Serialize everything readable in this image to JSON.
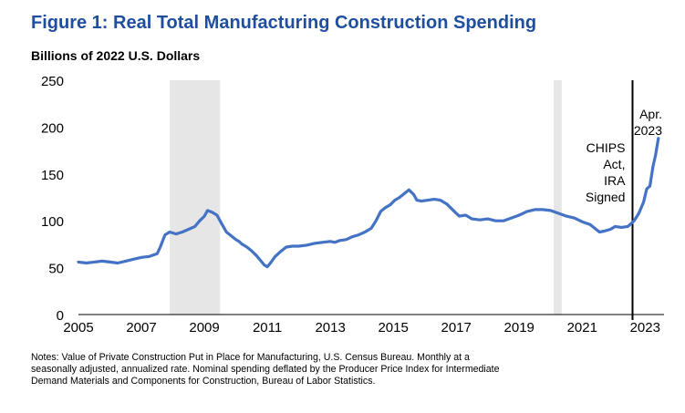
{
  "chart_data": {
    "type": "line",
    "title": "Figure 1: Real Total Manufacturing Construction Spending",
    "ylabel": "Billions of 2022 U.S. Dollars",
    "xlabel": "",
    "ylim": [
      0,
      250
    ],
    "xlim": [
      2005,
      2023.6
    ],
    "yticks": [
      "0",
      "50",
      "100",
      "150",
      "200",
      "250"
    ],
    "xticks": [
      "2005",
      "2007",
      "2009",
      "2011",
      "2013",
      "2015",
      "2017",
      "2019",
      "2021",
      "2023"
    ],
    "grid": false,
    "recessions": [
      [
        2007.9,
        2009.5
      ],
      [
        2020.1,
        2020.35
      ]
    ],
    "annotations": [
      {
        "text": [
          "CHIPS",
          "Act,",
          "IRA",
          "Signed"
        ],
        "x": 2022.6
      },
      {
        "text": [
          "Apr.",
          "2023"
        ],
        "x": 2023.3
      }
    ],
    "series": [
      {
        "name": "Real Total Manufacturing Construction Spending",
        "color": "#4472c4",
        "points": [
          [
            2005.0,
            56
          ],
          [
            2005.25,
            55
          ],
          [
            2005.5,
            56
          ],
          [
            2005.75,
            57
          ],
          [
            2006.0,
            56
          ],
          [
            2006.25,
            55
          ],
          [
            2006.5,
            57
          ],
          [
            2006.75,
            59
          ],
          [
            2007.0,
            61
          ],
          [
            2007.25,
            62
          ],
          [
            2007.5,
            65
          ],
          [
            2007.6,
            72
          ],
          [
            2007.75,
            85
          ],
          [
            2007.9,
            88
          ],
          [
            2008.1,
            86
          ],
          [
            2008.3,
            88
          ],
          [
            2008.5,
            91
          ],
          [
            2008.7,
            94
          ],
          [
            2008.85,
            100
          ],
          [
            2009.0,
            105
          ],
          [
            2009.1,
            111
          ],
          [
            2009.25,
            109
          ],
          [
            2009.4,
            106
          ],
          [
            2009.55,
            97
          ],
          [
            2009.7,
            88
          ],
          [
            2009.85,
            84
          ],
          [
            2010.0,
            80
          ],
          [
            2010.1,
            78
          ],
          [
            2010.2,
            75
          ],
          [
            2010.35,
            72
          ],
          [
            2010.5,
            68
          ],
          [
            2010.65,
            63
          ],
          [
            2010.8,
            57
          ],
          [
            2010.9,
            53
          ],
          [
            2011.0,
            51
          ],
          [
            2011.1,
            55
          ],
          [
            2011.25,
            62
          ],
          [
            2011.45,
            68
          ],
          [
            2011.6,
            72
          ],
          [
            2011.8,
            73
          ],
          [
            2012.0,
            73
          ],
          [
            2012.25,
            74
          ],
          [
            2012.5,
            76
          ],
          [
            2012.75,
            77
          ],
          [
            2013.0,
            78
          ],
          [
            2013.15,
            77
          ],
          [
            2013.3,
            79
          ],
          [
            2013.5,
            80
          ],
          [
            2013.7,
            83
          ],
          [
            2013.9,
            85
          ],
          [
            2014.1,
            88
          ],
          [
            2014.3,
            92
          ],
          [
            2014.45,
            100
          ],
          [
            2014.6,
            110
          ],
          [
            2014.75,
            114
          ],
          [
            2014.9,
            117
          ],
          [
            2015.05,
            122
          ],
          [
            2015.2,
            125
          ],
          [
            2015.35,
            129
          ],
          [
            2015.5,
            133
          ],
          [
            2015.65,
            128
          ],
          [
            2015.75,
            122
          ],
          [
            2015.9,
            121
          ],
          [
            2016.1,
            122
          ],
          [
            2016.3,
            123
          ],
          [
            2016.5,
            122
          ],
          [
            2016.7,
            118
          ],
          [
            2016.85,
            113
          ],
          [
            2017.0,
            108
          ],
          [
            2017.1,
            105
          ],
          [
            2017.3,
            106
          ],
          [
            2017.5,
            102
          ],
          [
            2017.75,
            101
          ],
          [
            2018.0,
            102
          ],
          [
            2018.25,
            100
          ],
          [
            2018.5,
            100
          ],
          [
            2018.75,
            103
          ],
          [
            2019.0,
            106
          ],
          [
            2019.25,
            110
          ],
          [
            2019.5,
            112
          ],
          [
            2019.75,
            112
          ],
          [
            2020.0,
            111
          ],
          [
            2020.25,
            108
          ],
          [
            2020.5,
            105
          ],
          [
            2020.75,
            103
          ],
          [
            2021.0,
            99
          ],
          [
            2021.25,
            96
          ],
          [
            2021.4,
            92
          ],
          [
            2021.55,
            88
          ],
          [
            2021.7,
            89
          ],
          [
            2021.9,
            91
          ],
          [
            2022.05,
            94
          ],
          [
            2022.25,
            93
          ],
          [
            2022.45,
            94
          ],
          [
            2022.65,
            100
          ],
          [
            2022.8,
            108
          ],
          [
            2022.95,
            120
          ],
          [
            2023.05,
            134
          ],
          [
            2023.15,
            137
          ],
          [
            2023.25,
            158
          ],
          [
            2023.33,
            170
          ],
          [
            2023.42,
            188
          ]
        ]
      }
    ]
  },
  "notes": [
    "Notes: Value of Private Construction Put in Place for Manufacturing, U.S. Census Bureau. Monthly at a",
    "seasonally adjusted, annualized rate. Nominal spending deflated by the Producer Price Index for Intermediate",
    "Demand Materials and Components for Construction, Bureau of Labor Statistics."
  ]
}
